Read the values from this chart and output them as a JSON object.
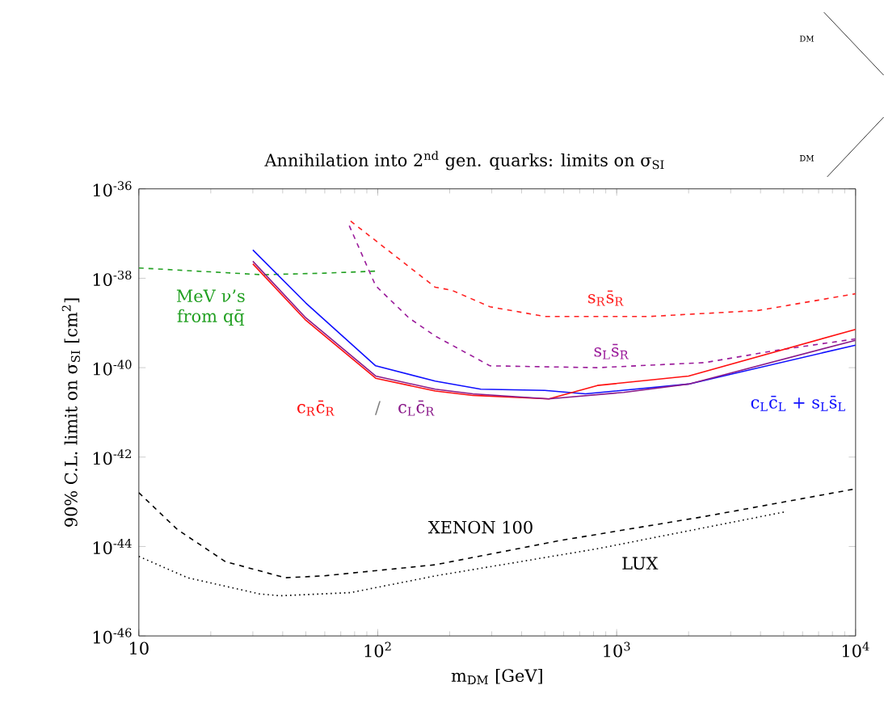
{
  "chart_data": {
    "type": "line",
    "title": "Annihilation into 2$^{nd}$ gen. quarks: limits on σ$_{SI}$",
    "xlabel": "m$_{DM}$ [GeV]",
    "ylabel": "90% C.L. limit on σ$_{SI}$ [cm$^{2}$]",
    "log": "xy",
    "xlim": [
      10,
      10000
    ],
    "ylim": [
      1e-46,
      1e-36
    ],
    "xticks": [
      {
        "value": 10,
        "label": "10"
      },
      {
        "value": 100,
        "label": "10$^{2}$"
      },
      {
        "value": 1000,
        "label": "10$^{3}$"
      },
      {
        "value": 10000,
        "label": "10$^{4}$"
      }
    ],
    "yticks": [
      {
        "value": 1e-46,
        "label": "10$^{-46}$"
      },
      {
        "value": 1e-44,
        "label": "10$^{-44}$"
      },
      {
        "value": 1e-42,
        "label": "10$^{-42}$"
      },
      {
        "value": 1e-40,
        "label": "10$^{-40}$"
      },
      {
        "value": 1e-38,
        "label": "10$^{-38}$"
      },
      {
        "value": 1e-36,
        "label": "10$^{-36}$"
      }
    ],
    "series": [
      {
        "name": "MeV ν’s from qq̄",
        "color": "#22a022",
        "line_style": "dashed",
        "x": [
          10,
          33,
          60,
          100
        ],
        "values": [
          1.7e-38,
          1.2e-38,
          1.3e-38,
          1.45e-38
        ]
      },
      {
        "name": "s$_{R}$s̄$_{R}$",
        "color": "#ff2020",
        "line_style": "dashed",
        "x": [
          77,
          174,
          204,
          295,
          500,
          1380,
          3900,
          10000
        ],
        "values": [
          1.9e-37,
          6.3e-39,
          5.4e-39,
          2.3e-39,
          1.4e-39,
          1.4e-39,
          1.9e-39,
          4.5e-39
        ]
      },
      {
        "name": "s$_{L}$s̄$_{R}$",
        "color": "#9a1a9a",
        "line_style": "dashed",
        "x": [
          76,
          98,
          135,
          174,
          295,
          830,
          2340,
          4800,
          10000
        ],
        "values": [
          1.5e-37,
          6.8e-39,
          1.3e-39,
          5.1e-40,
          1.1e-40,
          1e-40,
          1.3e-40,
          2.5e-40,
          4.4e-40
        ]
      },
      {
        "name": "c$_{L}$c̄$_{L}$ + s$_{L}$s̄$_{L}$",
        "color": "#1010ff",
        "line_style": "solid",
        "x": [
          30,
          50,
          98,
          174,
          270,
          500,
          740,
          2000,
          10000
        ],
        "values": [
          4.3e-38,
          2.8e-39,
          1.1e-40,
          5e-41,
          3.3e-41,
          3.1e-41,
          2.6e-41,
          4.3e-41,
          3.2e-40
        ]
      },
      {
        "name": "c$_{R}$c̄$_{R}$",
        "color": "#ff1010",
        "line_style": "solid",
        "x": [
          30,
          50,
          98,
          174,
          250,
          520,
          830,
          2000,
          10000
        ],
        "values": [
          2.1e-38,
          1.15e-39,
          5.8e-41,
          3e-41,
          2.4e-41,
          2e-41,
          4e-41,
          6.5e-41,
          7.2e-40
        ]
      },
      {
        "name": "c$_{L}$c̄$_{R}$",
        "color": "#8a1a8a",
        "line_style": "solid",
        "x": [
          30,
          50,
          98,
          174,
          250,
          520,
          1070,
          2000,
          10000
        ],
        "values": [
          2.4e-38,
          1.3e-39,
          6.5e-41,
          3.3e-41,
          2.6e-41,
          2e-41,
          2.8e-41,
          4.3e-41,
          4.1e-40
        ]
      },
      {
        "name": "XENON 100",
        "color": "#000000",
        "line_style": "dashed",
        "x": [
          10,
          14.5,
          23,
          41,
          59,
          174,
          575,
          2340,
          10000
        ],
        "values": [
          1.6e-43,
          2.4e-44,
          4.6e-45,
          2e-45,
          2.2e-45,
          3.9e-45,
          1.35e-44,
          4.7e-44,
          1.95e-43
        ]
      },
      {
        "name": "LUX",
        "color": "#000000",
        "line_style": "dotted",
        "x": [
          10,
          16,
          32,
          39,
          77,
          174,
          830,
          5100
        ],
        "values": [
          6e-45,
          2e-45,
          8.7e-46,
          7.9e-46,
          9.3e-46,
          2.2e-45,
          8.9e-45,
          6e-44
        ]
      }
    ],
    "annotations": [
      "/",
      "DM",
      "DM"
    ]
  }
}
